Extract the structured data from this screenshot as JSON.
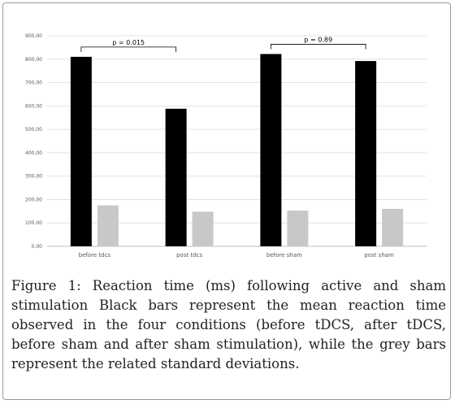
{
  "chart_data": {
    "type": "bar",
    "categories": [
      "before tdcs",
      "post tdcs",
      "before sham",
      "post sham"
    ],
    "series": [
      {
        "values": [
          810,
          588,
          822,
          792
        ],
        "color": "#000000"
      },
      {
        "values": [
          175,
          148,
          153,
          160
        ],
        "color": "#c8c8c8"
      }
    ],
    "yticks": [
      "0,00",
      "100,00",
      "200,00",
      "300,00",
      "400,00",
      "500,00",
      "600,00",
      "700,00",
      "800,00",
      "900,00"
    ],
    "ylim": [
      0,
      900
    ],
    "grid": true,
    "annotations": [
      {
        "label": "p = 0.015",
        "from_category": 0,
        "to_category": 1
      },
      {
        "label": "p = 0.89",
        "from_category": 2,
        "to_category": 3
      }
    ]
  },
  "caption": {
    "lead": "Figure 1:",
    "text": " Reaction time (ms) following active and sham stimulation Black bars represent the mean reaction time observed in the four conditions (before tDCS, after tDCS, before sham and after sham stimulation), while the grey bars represent the related standard deviations."
  }
}
